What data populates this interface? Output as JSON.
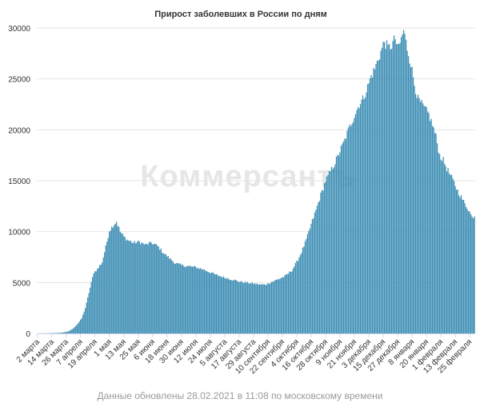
{
  "chart_data": {
    "type": "bar",
    "title": "Прирост заболевших в России по дням",
    "xlabel": "",
    "ylabel": "",
    "ylim": [
      0,
      30000
    ],
    "y_ticks": [
      0,
      5000,
      10000,
      15000,
      20000,
      25000,
      30000
    ],
    "grid": true,
    "bar_color": "#3f8fb5",
    "watermark": "Коммерсантъ",
    "x_tick_labels": [
      "2 марта",
      "14 марта",
      "26 марта",
      "7 апреля",
      "19 апреля",
      "1 мая",
      "13 мая",
      "25 мая",
      "6 июня",
      "18 июня",
      "30 июня",
      "12 июля",
      "24 июля",
      "5 августа",
      "17 августа",
      "29 августа",
      "10 сентября",
      "22 сентября",
      "4 октября",
      "16 октября",
      "28 октября",
      "9 ноября",
      "21 ноября",
      "3 декабря",
      "15 декабря",
      "27 декабря",
      "8 января",
      "20 января",
      "1 февраля",
      "13 февраля",
      "25 февраля"
    ],
    "points": [
      [
        0,
        3
      ],
      [
        10,
        20
      ],
      [
        20,
        60
      ],
      [
        26,
        200
      ],
      [
        30,
        500
      ],
      [
        34,
        1000
      ],
      [
        37,
        1500
      ],
      [
        40,
        2500
      ],
      [
        44,
        4500
      ],
      [
        47,
        6000
      ],
      [
        50,
        6300
      ],
      [
        54,
        7000
      ],
      [
        57,
        8500
      ],
      [
        60,
        10100
      ],
      [
        63,
        10600
      ],
      [
        66,
        11000
      ],
      [
        69,
        10000
      ],
      [
        72,
        9500
      ],
      [
        75,
        9200
      ],
      [
        80,
        8900
      ],
      [
        85,
        9000
      ],
      [
        90,
        8700
      ],
      [
        95,
        8900
      ],
      [
        100,
        8600
      ],
      [
        103,
        8200
      ],
      [
        106,
        7800
      ],
      [
        110,
        7400
      ],
      [
        115,
        6900
      ],
      [
        120,
        6700
      ],
      [
        126,
        6600
      ],
      [
        132,
        6500
      ],
      [
        138,
        6300
      ],
      [
        144,
        6000
      ],
      [
        150,
        5700
      ],
      [
        156,
        5500
      ],
      [
        162,
        5300
      ],
      [
        168,
        5100
      ],
      [
        174,
        5000
      ],
      [
        180,
        4900
      ],
      [
        186,
        4800
      ],
      [
        190,
        4800
      ],
      [
        196,
        5100
      ],
      [
        200,
        5300
      ],
      [
        206,
        5600
      ],
      [
        212,
        6200
      ],
      [
        216,
        7000
      ],
      [
        220,
        8000
      ],
      [
        224,
        9200
      ],
      [
        228,
        10700
      ],
      [
        232,
        12100
      ],
      [
        236,
        13600
      ],
      [
        240,
        15000
      ],
      [
        244,
        15900
      ],
      [
        248,
        16800
      ],
      [
        252,
        17900
      ],
      [
        256,
        19000
      ],
      [
        260,
        20300
      ],
      [
        264,
        21400
      ],
      [
        268,
        22500
      ],
      [
        271,
        23000
      ],
      [
        275,
        24200
      ],
      [
        278,
        25300
      ],
      [
        281,
        26000
      ],
      [
        284,
        27000
      ],
      [
        287,
        28000
      ],
      [
        289,
        28700
      ],
      [
        292,
        28000
      ],
      [
        295,
        28300
      ],
      [
        298,
        29000
      ],
      [
        300,
        27900
      ],
      [
        303,
        28900
      ],
      [
        305,
        29800
      ],
      [
        308,
        28000
      ],
      [
        311,
        26500
      ],
      [
        314,
        24500
      ],
      [
        317,
        23000
      ],
      [
        320,
        22500
      ],
      [
        323,
        22000
      ],
      [
        326,
        21500
      ],
      [
        329,
        20500
      ],
      [
        332,
        19300
      ],
      [
        335,
        17500
      ],
      [
        338,
        17000
      ],
      [
        341,
        16200
      ],
      [
        344,
        15500
      ],
      [
        347,
        14800
      ],
      [
        350,
        14000
      ],
      [
        353,
        13400
      ],
      [
        356,
        12700
      ],
      [
        359,
        12200
      ],
      [
        362,
        11400
      ],
      [
        364,
        11600
      ]
    ]
  },
  "credits": "Данные обновлены 28.02.2021 в 11:08 по московскому времени"
}
